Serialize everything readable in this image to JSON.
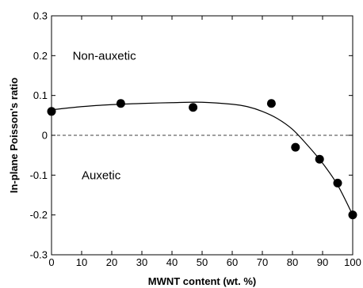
{
  "chart_data": {
    "type": "scatter",
    "title": "",
    "xlabel": "MWNT content (wt. %)",
    "ylabel": "In-plane Poisson's ratio",
    "xlim": [
      0,
      100
    ],
    "ylim": [
      -0.3,
      0.3
    ],
    "xticks": [
      0,
      10,
      20,
      30,
      40,
      50,
      60,
      70,
      80,
      90,
      100
    ],
    "xtick_labels": [
      "0",
      "10",
      "20",
      "30",
      "40",
      "50",
      "60",
      "70",
      "80",
      "90",
      "100"
    ],
    "yticks": [
      -0.3,
      -0.2,
      -0.1,
      0,
      0.1,
      0.2,
      0.3
    ],
    "ytick_labels": [
      "-0.3",
      "-0.2",
      "-0.1",
      "0",
      "0.1",
      "0.2",
      "0.3"
    ],
    "grid": false,
    "legend": "none",
    "points": [
      {
        "x": 0,
        "y": 0.06
      },
      {
        "x": 23,
        "y": 0.08
      },
      {
        "x": 47,
        "y": 0.07
      },
      {
        "x": 73,
        "y": 0.08
      },
      {
        "x": 81,
        "y": -0.03
      },
      {
        "x": 89,
        "y": -0.06
      },
      {
        "x": 95,
        "y": -0.12
      },
      {
        "x": 100,
        "y": -0.2
      }
    ],
    "fit_curve": [
      {
        "x": 0,
        "y": 0.064
      },
      {
        "x": 10,
        "y": 0.072
      },
      {
        "x": 20,
        "y": 0.077
      },
      {
        "x": 30,
        "y": 0.08
      },
      {
        "x": 40,
        "y": 0.082
      },
      {
        "x": 50,
        "y": 0.083
      },
      {
        "x": 60,
        "y": 0.078
      },
      {
        "x": 65,
        "y": 0.072
      },
      {
        "x": 70,
        "y": 0.06
      },
      {
        "x": 75,
        "y": 0.042
      },
      {
        "x": 80,
        "y": 0.015
      },
      {
        "x": 85,
        "y": -0.025
      },
      {
        "x": 90,
        "y": -0.07
      },
      {
        "x": 95,
        "y": -0.125
      },
      {
        "x": 100,
        "y": -0.2
      }
    ],
    "reference_line": {
      "y": 0,
      "style": "dashed"
    },
    "annotations": [
      {
        "text": "Non-auxetic",
        "x": 7,
        "y": 0.19
      },
      {
        "text": "Auxetic",
        "x": 10,
        "y": -0.11
      }
    ]
  }
}
